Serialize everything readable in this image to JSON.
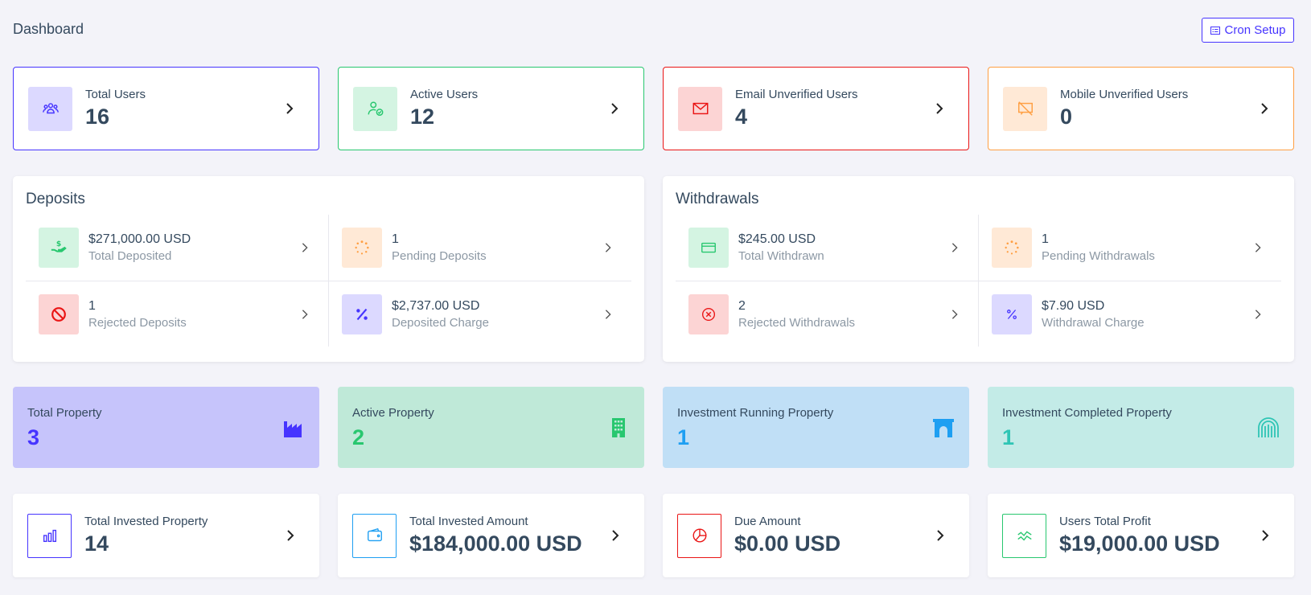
{
  "header": {
    "title": "Dashboard",
    "cron_button": "Cron Setup"
  },
  "user_stats": [
    {
      "label": "Total Users",
      "value": "16",
      "icon": "users-icon",
      "color": "#4634ff",
      "bg": "#dcd9ff"
    },
    {
      "label": "Active Users",
      "value": "12",
      "icon": "user-check-icon",
      "color": "#28c76f",
      "bg": "#d4f4e2"
    },
    {
      "label": "Email Unverified Users",
      "value": "4",
      "icon": "envelope-icon",
      "color": "#ea1515",
      "bg": "#fcd4d4"
    },
    {
      "label": "Mobile Unverified Users",
      "value": "0",
      "icon": "comment-slash-icon",
      "color": "#ff9f43",
      "bg": "#ffe9d6"
    }
  ],
  "deposits": {
    "title": "Deposits",
    "items": [
      {
        "value": "$271,000.00 USD",
        "label": "Total Deposited",
        "icon": "hand-holding-dollar-icon"
      },
      {
        "value": "1",
        "label": "Pending Deposits",
        "icon": "spinner-icon"
      },
      {
        "value": "1",
        "label": "Rejected Deposits",
        "icon": "ban-icon"
      },
      {
        "value": "$2,737.00 USD",
        "label": "Deposited Charge",
        "icon": "percent-icon"
      }
    ]
  },
  "withdrawals": {
    "title": "Withdrawals",
    "items": [
      {
        "value": "$245.00 USD",
        "label": "Total Withdrawn",
        "icon": "credit-card-icon"
      },
      {
        "value": "1",
        "label": "Pending Withdrawals",
        "icon": "spinner-icon"
      },
      {
        "value": "2",
        "label": "Rejected Withdrawals",
        "icon": "times-circle-icon"
      },
      {
        "value": "$7.90 USD",
        "label": "Withdrawal Charge",
        "icon": "percent-icon"
      }
    ]
  },
  "property_stats": [
    {
      "label": "Total Property",
      "value": "3",
      "icon": "industry-icon",
      "color": "#4634ff",
      "bg": "#c6c4fb"
    },
    {
      "label": "Active Property",
      "value": "2",
      "icon": "building-icon",
      "color": "#28c76f",
      "bg": "#bfe9d8"
    },
    {
      "label": "Investment Running Property",
      "value": "1",
      "icon": "archway-icon",
      "color": "#1e9ff2",
      "bg": "#c0dff6"
    },
    {
      "label": "Investment Completed Property",
      "value": "1",
      "icon": "gopuram-icon",
      "color": "#2fc5b5",
      "bg": "#c3ebe7"
    }
  ],
  "investment_stats": [
    {
      "label": "Total Invested Property",
      "value": "14",
      "icon": "chart-bar-icon",
      "color": "#4634ff"
    },
    {
      "label": "Total Invested Amount",
      "value": "$184,000.00 USD",
      "icon": "wallet-icon",
      "color": "#1e9ff2"
    },
    {
      "label": "Due Amount",
      "value": "$0.00 USD",
      "icon": "chart-pie-icon",
      "color": "#ea1515"
    },
    {
      "label": "Users Total Profit",
      "value": "$19,000.00 USD",
      "icon": "chart-line-icon",
      "color": "#28c76f"
    }
  ]
}
